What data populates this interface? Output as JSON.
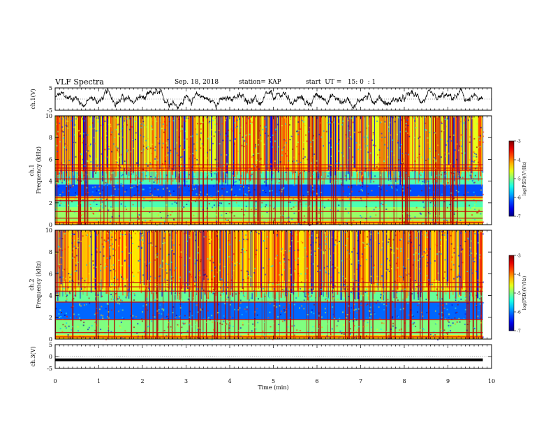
{
  "header": {
    "title": "VLF Spectra",
    "date": "Sep. 18, 2018",
    "station": "station= KAP",
    "start_ut": "start  UT =   15: 0  : 1"
  },
  "chart_data": [
    {
      "type": "line",
      "panel": "ch1-waveform",
      "ylabel": "ch.1(V)",
      "ylim": [
        -5,
        5
      ],
      "yticks": [
        "5",
        "-5"
      ],
      "xlim": [
        0,
        10
      ],
      "grid": false,
      "color": "#000000"
    },
    {
      "type": "heatmap",
      "panel": "ch1-spectrogram",
      "ylabel_lines": [
        "ch.1",
        "Frequency  (kHz)"
      ],
      "ylim": [
        0,
        10
      ],
      "yticks": [
        "0",
        "2",
        "4",
        "6",
        "8",
        "10"
      ],
      "xlim": [
        0,
        10
      ],
      "data_extent_min": 9.8,
      "colorbar": {
        "label": "log(PSD)(V²/Hz)",
        "range": [
          -7,
          -3
        ],
        "ticks": [
          "-3",
          "-4",
          "-5",
          "-6",
          "-7"
        ],
        "colormap": "jet"
      },
      "bands_khz": [
        {
          "f0": 0.0,
          "f1": 0.35,
          "level": -4.2
        },
        {
          "f0": 0.35,
          "f1": 1.6,
          "level": -4.9
        },
        {
          "f0": 1.6,
          "f1": 2.3,
          "level": -5.2
        },
        {
          "f0": 2.3,
          "f1": 2.6,
          "level": -4.3
        },
        {
          "f0": 2.6,
          "f1": 3.7,
          "level": -6.2
        },
        {
          "f0": 3.7,
          "f1": 4.9,
          "level": -5.2
        },
        {
          "f0": 4.9,
          "f1": 5.5,
          "level": -4.4
        },
        {
          "f0": 5.5,
          "f1": 10.0,
          "level": -4.6
        }
      ],
      "lines_khz": [
        0.2,
        0.6,
        1.2,
        2.2,
        2.5,
        4.2,
        5.0,
        5.2,
        5.5
      ]
    },
    {
      "type": "heatmap",
      "panel": "ch2-spectrogram",
      "ylabel_lines": [
        "ch.2",
        "Frequency  (kHz)"
      ],
      "ylim": [
        0,
        10
      ],
      "yticks": [
        "0",
        "2",
        "4",
        "6",
        "8",
        "10"
      ],
      "xlim": [
        0,
        10
      ],
      "data_extent_min": 9.8,
      "colorbar": {
        "label": "log(PSD)(V²/Hz)",
        "range": [
          -7,
          -3
        ],
        "ticks": [
          "-3",
          "-4",
          "-5",
          "-6",
          "-7"
        ],
        "colormap": "jet"
      },
      "bands_khz": [
        {
          "f0": 0.0,
          "f1": 0.4,
          "level": -4.3
        },
        {
          "f0": 0.4,
          "f1": 1.8,
          "level": -5.0
        },
        {
          "f0": 1.8,
          "f1": 3.4,
          "level": -6.1
        },
        {
          "f0": 3.4,
          "f1": 4.4,
          "level": -5.1
        },
        {
          "f0": 4.4,
          "f1": 5.2,
          "level": -4.6
        },
        {
          "f0": 5.2,
          "f1": 10.0,
          "level": -4.4
        }
      ],
      "lines_khz": [
        0.2,
        0.6,
        1.8,
        3.4,
        4.4,
        4.8,
        5.2
      ]
    },
    {
      "type": "line",
      "panel": "ch3-waveform",
      "ylabel": "ch.3(V)",
      "ylim": [
        -5,
        5
      ],
      "yticks": [
        "5",
        "0",
        "-5"
      ],
      "xlim": [
        0,
        10
      ],
      "level_v": 0,
      "xlabel": "Time  (min)",
      "xticks": [
        "0",
        "1",
        "2",
        "3",
        "4",
        "5",
        "6",
        "7",
        "8",
        "9",
        "10"
      ],
      "color": "#000000"
    }
  ]
}
